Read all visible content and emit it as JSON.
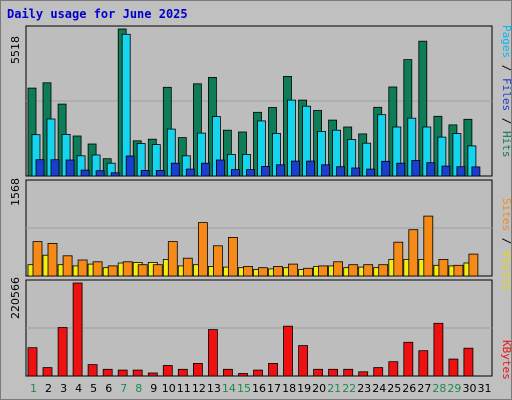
{
  "chart_data": {
    "type": "bar",
    "title": "Daily usage for June 2025",
    "categories": [
      "1",
      "2",
      "3",
      "4",
      "5",
      "6",
      "7",
      "8",
      "9",
      "10",
      "11",
      "12",
      "13",
      "14",
      "15",
      "16",
      "17",
      "18",
      "19",
      "20",
      "21",
      "22",
      "23",
      "24",
      "25",
      "26",
      "27",
      "28",
      "29",
      "30",
      "31"
    ],
    "weekend_days": [
      "1",
      "7",
      "8",
      "14",
      "15",
      "21",
      "22",
      "28",
      "29"
    ],
    "panels": [
      {
        "id": "hits-files-pages",
        "max_label": "5518",
        "ylim": [
          0,
          5518
        ],
        "side_labels": [
          "Pages",
          "Files",
          "Hits"
        ],
        "series": [
          {
            "name": "Hits",
            "color": "#0e7c56",
            "values": [
              3300,
              3500,
              2700,
              1500,
              1200,
              650,
              5518,
              1320,
              1380,
              3330,
              1440,
              3460,
              3700,
              1720,
              1650,
              2390,
              2570,
              3740,
              2850,
              2460,
              2100,
              1840,
              1580,
              2580,
              3340,
              4370,
              5060,
              2240,
              1920,
              2130,
              0
            ]
          },
          {
            "name": "Files",
            "color": "#14d4ee",
            "values": [
              1550,
              2140,
              1560,
              760,
              790,
              480,
              5318,
              1220,
              1180,
              1760,
              760,
              1610,
              2230,
              810,
              810,
              2070,
              1600,
              2850,
              2620,
              1670,
              1720,
              1370,
              1230,
              2300,
              1840,
              2170,
              1840,
              1460,
              1590,
              1130,
              0
            ]
          },
          {
            "name": "Pages",
            "color": "#1a3fcf",
            "values": [
              610,
              610,
              600,
              220,
              200,
              120,
              750,
              210,
              210,
              480,
              260,
              480,
              600,
              240,
              240,
              360,
              420,
              560,
              560,
              420,
              350,
              300,
              260,
              550,
              480,
              580,
              500,
              370,
              350,
              340,
              0
            ]
          }
        ]
      },
      {
        "id": "visits-sites",
        "max_label": "1568",
        "ylim": [
          0,
          1568
        ],
        "side_labels": [
          "Sites",
          "Visits"
        ],
        "series": [
          {
            "name": "Visits",
            "color": "#f2ee10",
            "values": [
              190,
              350,
              190,
              170,
              200,
              140,
              220,
              230,
              230,
              280,
              170,
              190,
              160,
              150,
              140,
              110,
              120,
              140,
              110,
              160,
              170,
              140,
              150,
              140,
              280,
              280,
              280,
              180,
              170,
              220,
              0
            ]
          },
          {
            "name": "Sites",
            "color": "#f58a16",
            "values": [
              580,
              550,
              340,
              270,
              240,
              170,
              240,
              190,
              190,
              580,
              300,
              900,
              510,
              650,
              160,
              140,
              160,
              200,
              130,
              170,
              240,
              190,
              190,
              190,
              570,
              780,
              1010,
              280,
              180,
              370,
              0
            ]
          }
        ]
      },
      {
        "id": "kbytes",
        "max_label": "220566",
        "ylim": [
          0,
          220566
        ],
        "side_labels": [
          "KBytes"
        ],
        "series": [
          {
            "name": "KBytes",
            "color": "#ee1111",
            "values": [
              67000,
              20000,
              115000,
              220566,
              27000,
              16000,
              14000,
              14000,
              7000,
              25000,
              16000,
              30000,
              110000,
              16000,
              6000,
              14000,
              30000,
              118000,
              72000,
              16000,
              16000,
              16000,
              10000,
              20000,
              34000,
              80000,
              60000,
              125000,
              40000,
              66000,
              0
            ]
          }
        ]
      }
    ]
  }
}
